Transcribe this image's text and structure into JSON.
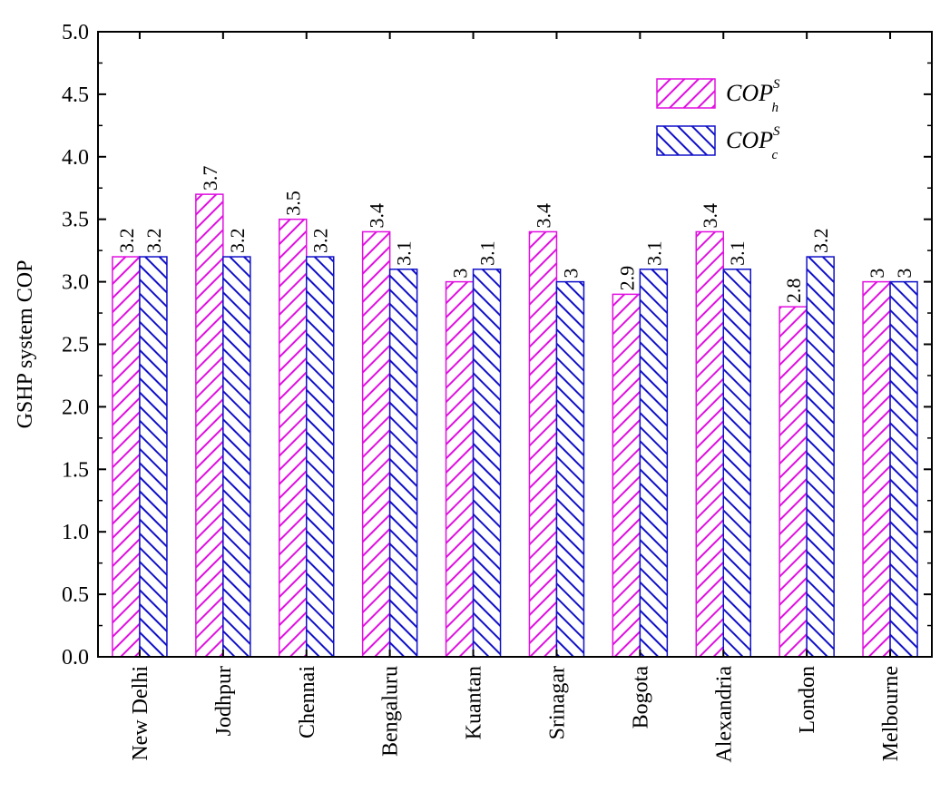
{
  "chart_data": {
    "type": "bar",
    "ylabel": "GSHP system COP",
    "xlabel": "",
    "ylim": [
      0,
      5.0
    ],
    "ytick_labels": [
      "0.0",
      "0.5",
      "1.0",
      "1.5",
      "2.0",
      "2.5",
      "3.0",
      "3.5",
      "4.0",
      "4.5",
      "5.0"
    ],
    "categories": [
      "New Delhi",
      "Jodhpur",
      "Chennai",
      "Bengaluru",
      "Kuantan",
      "Srinagar",
      "Bogota",
      "Alexandria",
      "London",
      "Melbourne"
    ],
    "series": [
      {
        "key": "h",
        "legend_base": "COP",
        "legend_sup": "S",
        "legend_sub": "h",
        "color": "#e010e0",
        "values": [
          3.2,
          3.7,
          3.5,
          3.4,
          3.0,
          3.4,
          2.9,
          3.4,
          2.8,
          3.0
        ],
        "value_labels": [
          "3.2",
          "3.7",
          "3.5",
          "3.4",
          "3",
          "3.4",
          "2.9",
          "3.4",
          "2.8",
          "3"
        ]
      },
      {
        "key": "c",
        "legend_base": "COP",
        "legend_sup": "S",
        "legend_sub": "c",
        "color": "#1010c8",
        "values": [
          3.2,
          3.2,
          3.2,
          3.1,
          3.1,
          3.0,
          3.1,
          3.1,
          3.2,
          3.0
        ],
        "value_labels": [
          "3.2",
          "3.2",
          "3.2",
          "3.1",
          "3.1",
          "3",
          "3.1",
          "3.1",
          "3.2",
          "3"
        ]
      }
    ],
    "legend_position": "top-right",
    "grid": false
  }
}
